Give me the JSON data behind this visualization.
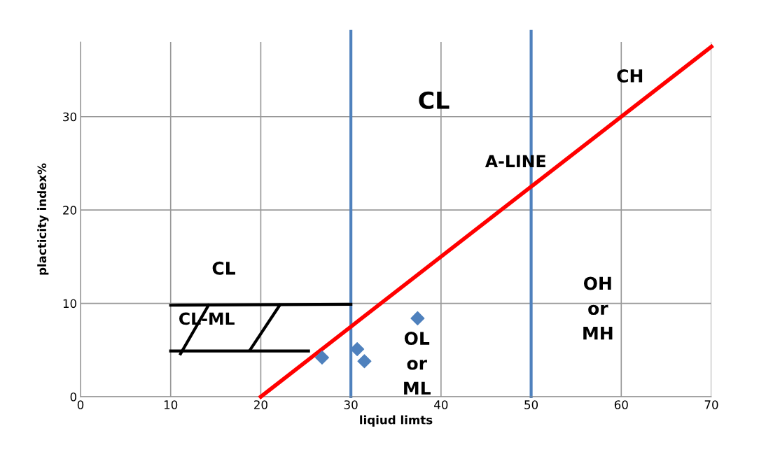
{
  "chart_data": {
    "type": "scatter",
    "xlabel": "liqiud limts",
    "ylabel": "placticity index%",
    "xlim": [
      0,
      70
    ],
    "ylim": [
      0,
      38
    ],
    "xticks": [
      0,
      10,
      20,
      30,
      40,
      50,
      60,
      70
    ],
    "yticks": [
      0,
      10,
      20,
      30
    ],
    "grid": true,
    "marker": "diamond",
    "x": [
      26.8,
      30.7,
      31.5,
      37.4
    ],
    "series": [
      {
        "color": "#4f81bd",
        "values": [
          4.2,
          5.1,
          3.8,
          8.4
        ]
      },
      {
        "type": "line",
        "color": "#ff0000",
        "marker": "none",
        "x": [
          20,
          70
        ],
        "values": [
          0,
          37.5
        ]
      },
      {
        "type": "line",
        "color": "#000000",
        "marker": "none",
        "x": [
          10,
          30
        ],
        "values": [
          9.8,
          9.9
        ]
      },
      {
        "type": "line",
        "color": "#000000",
        "marker": "none",
        "x": [
          10,
          25.3
        ],
        "values": [
          4.9,
          4.9
        ]
      },
      {
        "type": "line",
        "color": "#000000",
        "marker": "none",
        "x": [
          11.1,
          14.2
        ],
        "values": [
          4.6,
          9.8
        ]
      },
      {
        "type": "line",
        "color": "#000000",
        "marker": "none",
        "x": [
          18.8,
          22.1
        ],
        "values": [
          5.0,
          9.8
        ]
      }
    ],
    "ref_lines": [
      {
        "axis": "x",
        "value": 30,
        "color": "#4f81bd"
      },
      {
        "axis": "x",
        "value": 50,
        "color": "#4f81bd"
      }
    ],
    "annotations": [
      "CH",
      "CL",
      "A-LINE",
      "CL",
      "CL-ML",
      "OL\nor\nML",
      "OH\nor\nMH"
    ]
  }
}
